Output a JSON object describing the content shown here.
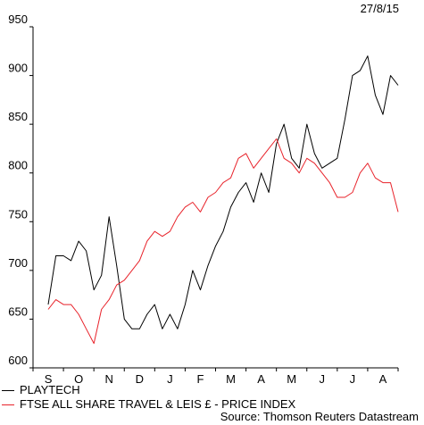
{
  "date_label": "27/8/15",
  "source": "Source: Thomson Reuters Datastream",
  "chart_data": {
    "type": "line",
    "title": "",
    "xlabel": "",
    "ylabel": "",
    "ylim": [
      600,
      950
    ],
    "yticks": [
      600,
      650,
      700,
      750,
      800,
      850,
      900,
      950
    ],
    "categories": [
      "S",
      "O",
      "N",
      "D",
      "J",
      "F",
      "M",
      "A",
      "M",
      "J",
      "J",
      "A"
    ],
    "grid": false,
    "legend_position": "bottom",
    "x": [
      0,
      0.25,
      0.5,
      0.75,
      1,
      1.25,
      1.5,
      1.75,
      2,
      2.25,
      2.5,
      2.75,
      3,
      3.25,
      3.5,
      3.75,
      4,
      4.25,
      4.5,
      4.75,
      5,
      5.25,
      5.5,
      5.75,
      6,
      6.25,
      6.5,
      6.75,
      7,
      7.25,
      7.5,
      7.75,
      8,
      8.25,
      8.5,
      8.75,
      9,
      9.25,
      9.5,
      9.75,
      10,
      10.25,
      10.5,
      10.75,
      11,
      11.25,
      11.5
    ],
    "series": [
      {
        "name": "PLAYTECH",
        "color": "#000000",
        "values": [
          665,
          715,
          715,
          710,
          730,
          720,
          680,
          695,
          755,
          705,
          650,
          640,
          640,
          655,
          665,
          640,
          655,
          640,
          665,
          700,
          680,
          705,
          725,
          740,
          765,
          780,
          790,
          770,
          800,
          780,
          830,
          850,
          815,
          805,
          850,
          820,
          805,
          810,
          815,
          855,
          900,
          905,
          920,
          880,
          860,
          900,
          890
        ]
      },
      {
        "name": "FTSE ALL SHARE TRAVEL & LEIS £ - PRICE INDEX",
        "color": "#e8222a",
        "values": [
          660,
          670,
          665,
          665,
          655,
          640,
          625,
          660,
          670,
          685,
          690,
          700,
          710,
          730,
          740,
          735,
          740,
          755,
          765,
          770,
          760,
          775,
          780,
          790,
          795,
          815,
          820,
          805,
          815,
          825,
          835,
          815,
          810,
          800,
          815,
          810,
          800,
          790,
          775,
          775,
          780,
          800,
          810,
          795,
          790,
          790,
          760
        ]
      }
    ]
  }
}
